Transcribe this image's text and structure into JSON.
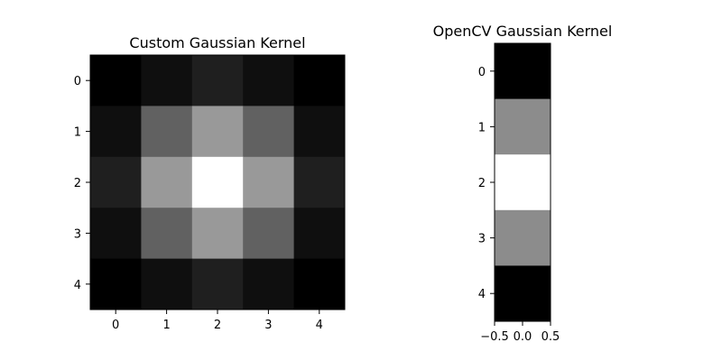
{
  "chart_data": [
    {
      "type": "heatmap",
      "title": "Custom Gaussian Kernel",
      "colormap": "gray",
      "rows": 5,
      "cols": 5,
      "values": [
        [
          0.0,
          0.06,
          0.12,
          0.06,
          0.0
        ],
        [
          0.06,
          0.38,
          0.6,
          0.38,
          0.06
        ],
        [
          0.12,
          0.6,
          1.0,
          0.6,
          0.12
        ],
        [
          0.06,
          0.38,
          0.6,
          0.38,
          0.06
        ],
        [
          0.0,
          0.06,
          0.12,
          0.06,
          0.0
        ]
      ],
      "x_ticks": [
        "0",
        "1",
        "2",
        "3",
        "4"
      ],
      "y_ticks": [
        "0",
        "1",
        "2",
        "3",
        "4"
      ],
      "xlim": [
        -0.5,
        4.5
      ],
      "ylim": [
        4.5,
        -0.5
      ]
    },
    {
      "type": "heatmap",
      "title": "OpenCV Gaussian Kernel",
      "colormap": "gray",
      "rows": 5,
      "cols": 1,
      "values": [
        [
          0.0
        ],
        [
          0.55
        ],
        [
          1.0
        ],
        [
          0.55
        ],
        [
          0.0
        ]
      ],
      "x_ticks": [
        "−0.5",
        "0.0",
        "0.5"
      ],
      "y_ticks": [
        "0",
        "1",
        "2",
        "3",
        "4"
      ],
      "xlim": [
        -0.5,
        0.5
      ],
      "ylim": [
        4.5,
        -0.5
      ]
    }
  ]
}
